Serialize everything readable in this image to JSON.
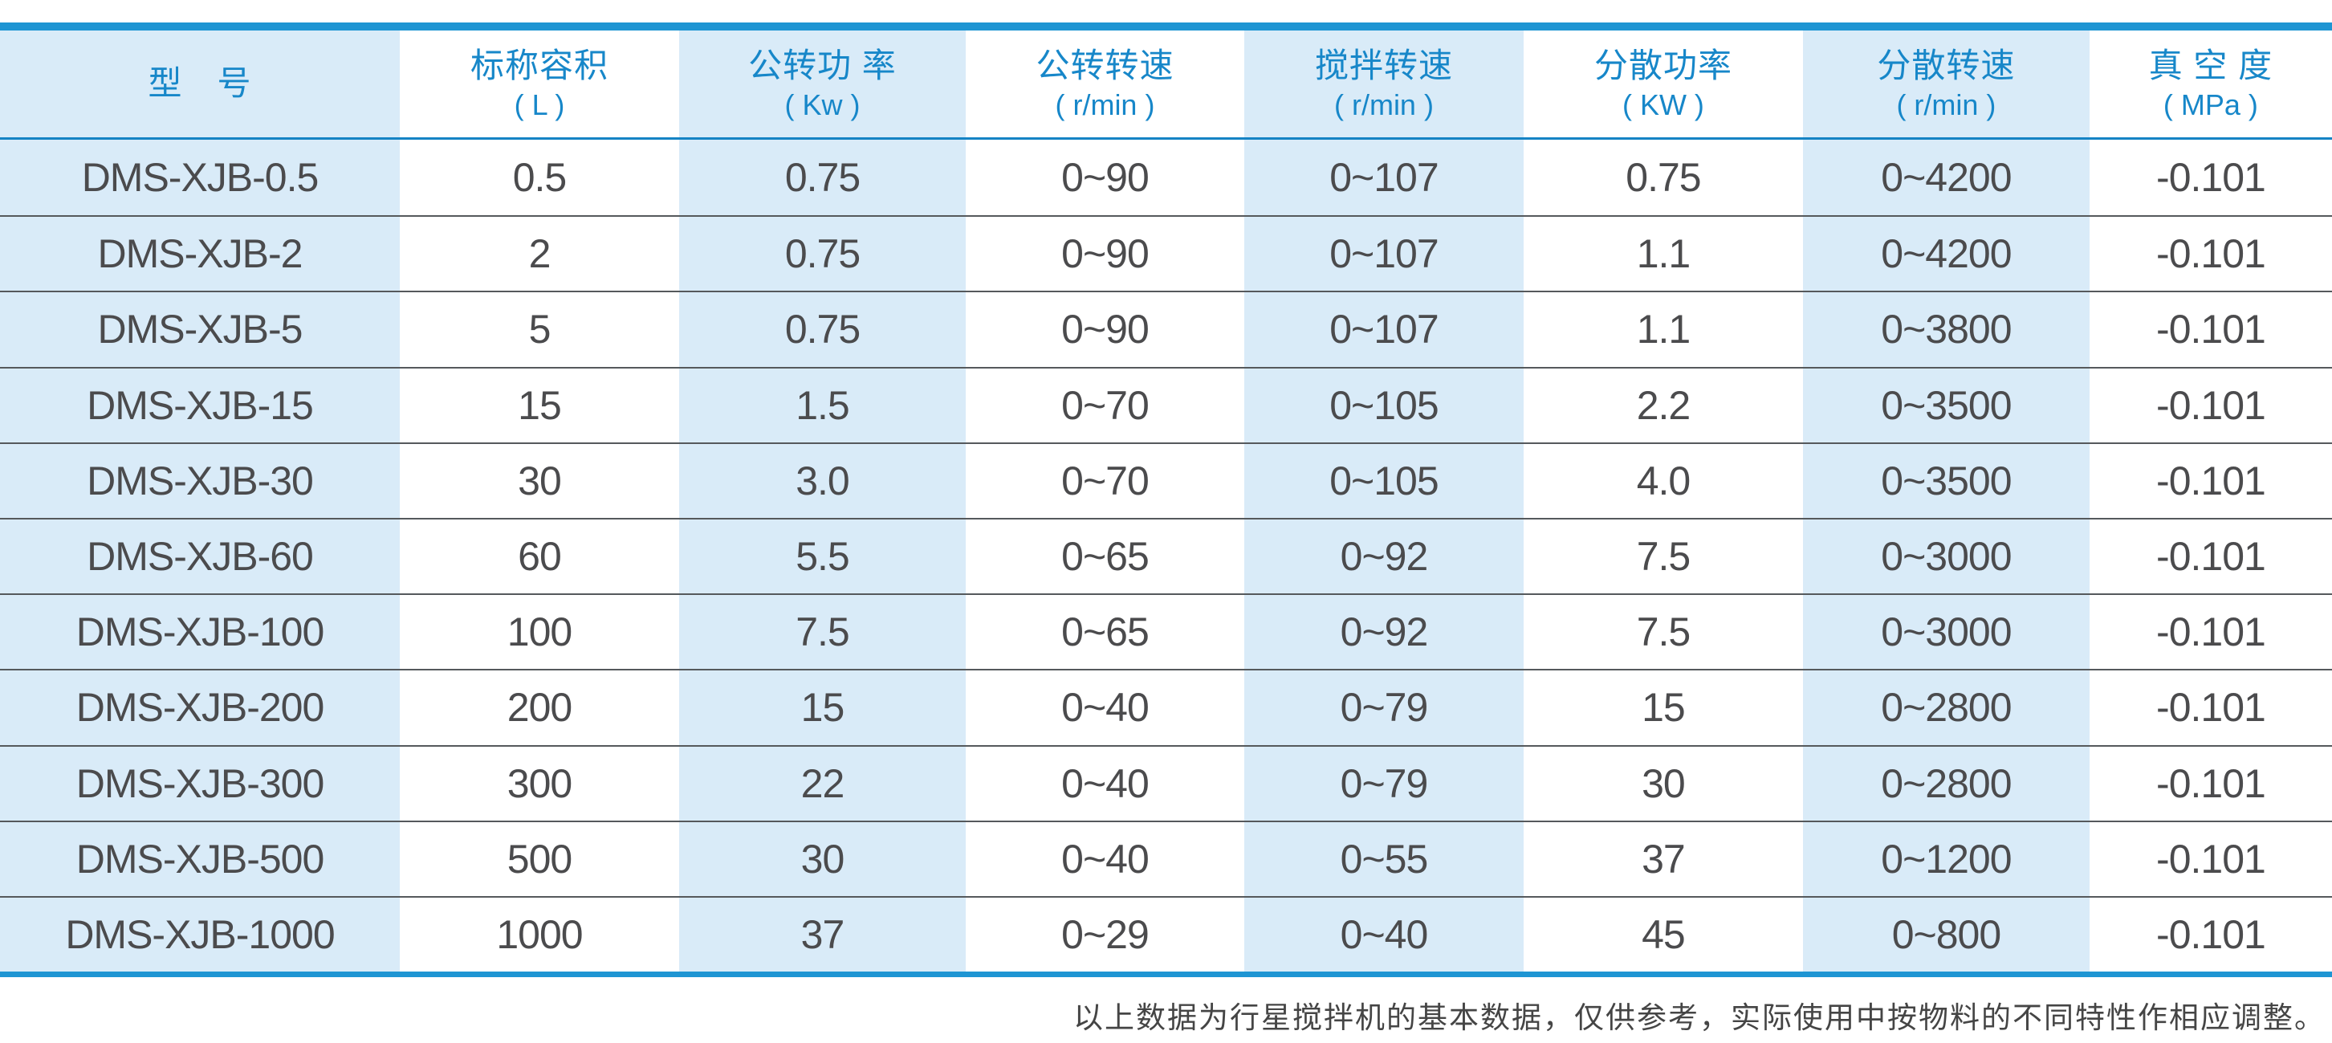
{
  "table": {
    "columns": [
      {
        "label": "型　号",
        "unit": ""
      },
      {
        "label": "标称容积",
        "unit": "( L )"
      },
      {
        "label": "公转功 率",
        "unit": "( Kw )"
      },
      {
        "label": "公转转速",
        "unit": "( r/min )"
      },
      {
        "label": "搅拌转速",
        "unit": "( r/min )"
      },
      {
        "label": "分散功率",
        "unit": "( KW )"
      },
      {
        "label": "分散转速",
        "unit": "( r/min )"
      },
      {
        "label": "真 空 度",
        "unit": "( MPa )"
      }
    ],
    "rows": [
      [
        "DMS-XJB-0.5",
        "0.5",
        "0.75",
        "0~90",
        "0~107",
        "0.75",
        "0~4200",
        "-0.101"
      ],
      [
        "DMS-XJB-2",
        "2",
        "0.75",
        "0~90",
        "0~107",
        "1.1",
        "0~4200",
        "-0.101"
      ],
      [
        "DMS-XJB-5",
        "5",
        "0.75",
        "0~90",
        "0~107",
        "1.1",
        "0~3800",
        "-0.101"
      ],
      [
        "DMS-XJB-15",
        "15",
        "1.5",
        "0~70",
        "0~105",
        "2.2",
        "0~3500",
        "-0.101"
      ],
      [
        "DMS-XJB-30",
        "30",
        "3.0",
        "0~70",
        "0~105",
        "4.0",
        "0~3500",
        "-0.101"
      ],
      [
        "DMS-XJB-60",
        "60",
        "5.5",
        "0~65",
        "0~92",
        "7.5",
        "0~3000",
        "-0.101"
      ],
      [
        "DMS-XJB-100",
        "100",
        "7.5",
        "0~65",
        "0~92",
        "7.5",
        "0~3000",
        "-0.101"
      ],
      [
        "DMS-XJB-200",
        "200",
        "15",
        "0~40",
        "0~79",
        "15",
        "0~2800",
        "-0.101"
      ],
      [
        "DMS-XJB-300",
        "300",
        "22",
        "0~40",
        "0~79",
        "30",
        "0~2800",
        "-0.101"
      ],
      [
        "DMS-XJB-500",
        "500",
        "30",
        "0~40",
        "0~55",
        "37",
        "0~1200",
        "-0.101"
      ],
      [
        "DMS-XJB-1000",
        "1000",
        "37",
        "0~29",
        "0~40",
        "45",
        "0~800",
        "-0.101"
      ]
    ]
  },
  "footer": {
    "note": "以上数据为行星搅拌机的基本数据，仅供参考，实际使用中按物料的不同特性作相应调整。"
  },
  "colors": {
    "accent_blue": "#1e95d3",
    "header_line_blue": "#1583c4",
    "header_text_blue": "#1787c9",
    "light_blue_fill": "#d9ebf8",
    "data_text": "#4b4b4d",
    "separator_gray": "#55595c",
    "footer_text": "#454545"
  }
}
